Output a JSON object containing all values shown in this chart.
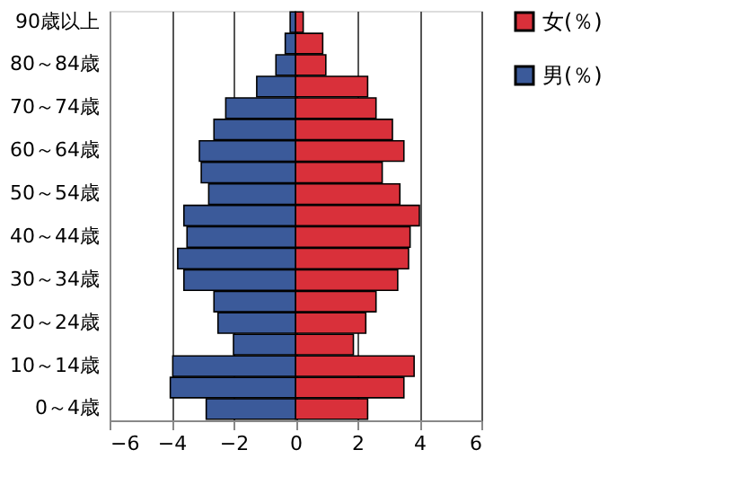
{
  "chart_data": {
    "type": "bar",
    "orientation": "horizontal",
    "stacked": true,
    "categories": [
      "90歳以上",
      null,
      "80～84歳",
      null,
      "70～74歳",
      null,
      "60～64歳",
      null,
      "50～54歳",
      null,
      "40～44歳",
      null,
      "30～34歳",
      null,
      "20～24歳",
      null,
      "10～14歳",
      null,
      "0～4歳"
    ],
    "series": [
      {
        "name": "女(％)",
        "color": "#d9303a",
        "values": [
          0.25,
          0.88,
          0.98,
          2.33,
          2.6,
          3.13,
          3.5,
          2.8,
          3.37,
          4.0,
          3.7,
          3.65,
          3.3,
          2.6,
          2.27,
          1.87,
          3.83,
          3.5,
          2.33
        ]
      },
      {
        "name": "男(％)",
        "color": "#3b5a9a",
        "values": [
          -0.17,
          -0.33,
          -0.63,
          -1.25,
          -2.25,
          -2.63,
          -3.1,
          -3.04,
          -2.8,
          -3.6,
          -3.5,
          -3.8,
          -3.6,
          -2.63,
          -2.5,
          -2.0,
          -3.96,
          -4.04,
          -2.88
        ]
      }
    ],
    "xlim": [
      -6,
      6
    ],
    "xticks": [
      -6,
      -4,
      -2,
      0,
      2,
      4,
      6
    ],
    "grid": "x",
    "legend": "right"
  }
}
